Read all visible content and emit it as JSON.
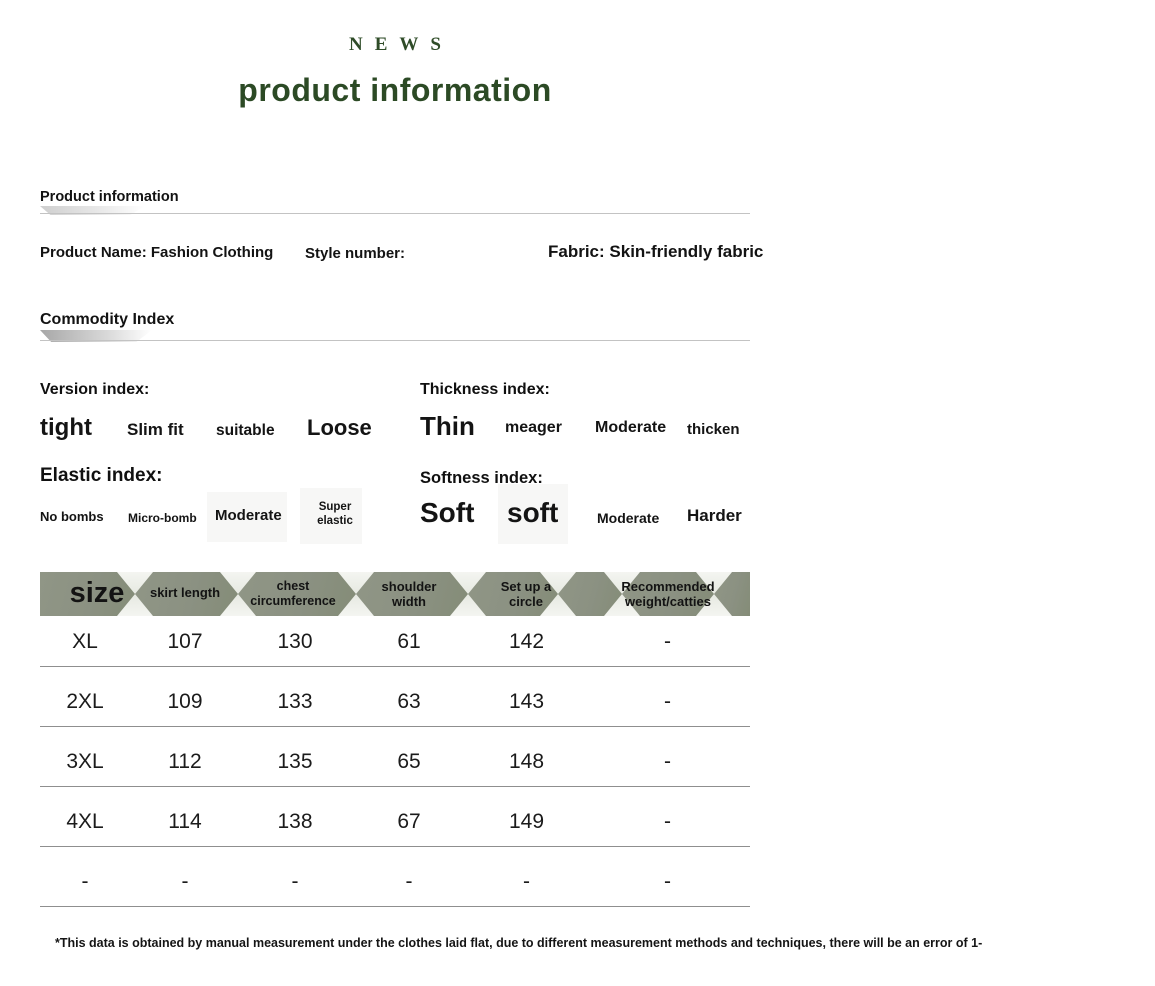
{
  "brand": {
    "eyebrow": "NEWS",
    "title": "product information"
  },
  "colors": {
    "brand_green": "#2c4a25",
    "banner_green": "#8b9182",
    "rule_gray": "#c3c3c3"
  },
  "product_info": {
    "heading": "Product information",
    "fields": {
      "product_name": "Product Name: Fashion Clothing",
      "style_number": "Style number:",
      "fabric": "Fabric: Skin-friendly fabric"
    }
  },
  "commodity_index": {
    "heading": "Commodity Index",
    "groups": [
      {
        "label": "Version index:",
        "options": [
          "tight",
          "Slim fit",
          "suitable",
          "Loose"
        ]
      },
      {
        "label": "Thickness index:",
        "options": [
          "Thin",
          "meager",
          "Moderate",
          "thicken"
        ]
      },
      {
        "label": "Elastic index:",
        "options": [
          "No bombs",
          "Micro-bomb",
          "Moderate",
          "Super elastic"
        ]
      },
      {
        "label": "Softness index:",
        "options": [
          "Soft",
          "soft",
          "Moderate",
          "Harder"
        ]
      }
    ]
  },
  "size_table": {
    "columns": [
      "size",
      "skirt length",
      "chest circumference",
      "shoulder width",
      "Set up a circle",
      "Recommended weight/catties"
    ],
    "rows": [
      [
        "XL",
        "107",
        "130",
        "61",
        "142",
        "-"
      ],
      [
        "2XL",
        "109",
        "133",
        "63",
        "143",
        "-"
      ],
      [
        "3XL",
        "112",
        "135",
        "65",
        "148",
        "-"
      ],
      [
        "4XL",
        "114",
        "138",
        "67",
        "149",
        "-"
      ],
      [
        "-",
        "-",
        "-",
        "-",
        "-",
        "-"
      ]
    ]
  },
  "footnote": "*This data is obtained by manual measurement under the clothes laid flat, due to different measurement methods and techniques, there will be an error of 1-"
}
